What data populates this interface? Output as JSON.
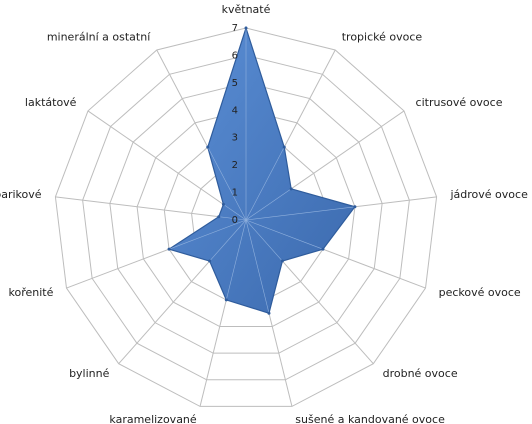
{
  "chart_data": {
    "type": "radar",
    "categories": [
      "květnaté",
      "tropické ovoce",
      "citrusové ovoce",
      "jádrové ovoce",
      "peckové ovoce",
      "drobné ovoce",
      "sušené a kandované ovoce",
      "karamelizované",
      "bylinné",
      "kořenité",
      "barikové",
      "laktátové",
      "minerální a ostatní"
    ],
    "values": [
      7,
      3,
      2,
      4,
      3,
      2,
      3.5,
      3,
      2,
      3,
      1,
      1,
      3
    ],
    "color": "#4a7cc4",
    "ylim": [
      0,
      7
    ],
    "yticks": [
      0,
      1,
      2,
      3,
      4,
      5,
      6,
      7
    ],
    "grid": true
  }
}
